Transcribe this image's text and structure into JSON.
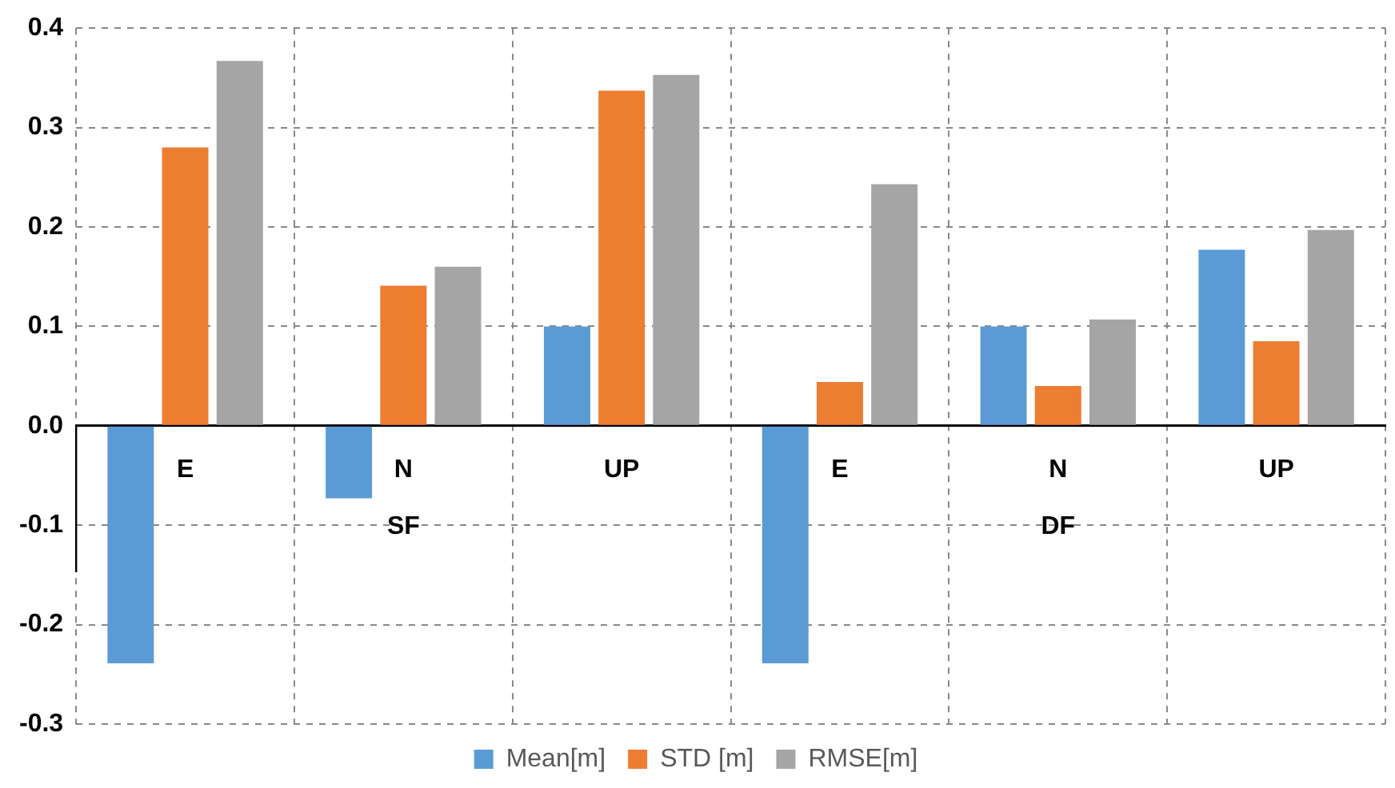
{
  "chart_data": {
    "type": "bar",
    "categories": [
      "E",
      "N",
      "UP",
      "E",
      "N",
      "UP"
    ],
    "annotations": [
      "SF",
      "DF"
    ],
    "series": [
      {
        "name": "Mean[m]",
        "color": "#5b9bd5",
        "values": [
          -0.239,
          -0.073,
          0.1,
          -0.239,
          0.1,
          0.177
        ]
      },
      {
        "name": "STD [m]",
        "color": "#ed7d31",
        "values": [
          0.28,
          0.141,
          0.337,
          0.044,
          0.04,
          0.085
        ]
      },
      {
        "name": "RMSE[m]",
        "color": "#a5a5a5",
        "values": [
          0.367,
          0.16,
          0.353,
          0.243,
          0.107,
          0.197
        ]
      }
    ],
    "ylim": [
      -0.3,
      0.4
    ],
    "yticks": [
      {
        "value": -0.3,
        "label": "-0.3"
      },
      {
        "value": -0.2,
        "label": "-0.2"
      },
      {
        "value": -0.1,
        "label": "-0.1"
      },
      {
        "value": 0,
        "label": "0.0"
      },
      {
        "value": 0.1,
        "label": "0.1"
      },
      {
        "value": 0.2,
        "label": "0.2"
      },
      {
        "value": 0.3,
        "label": "0.3"
      },
      {
        "value": 0.4,
        "label": "0.4"
      }
    ],
    "grid": true,
    "legend": "bottom"
  }
}
